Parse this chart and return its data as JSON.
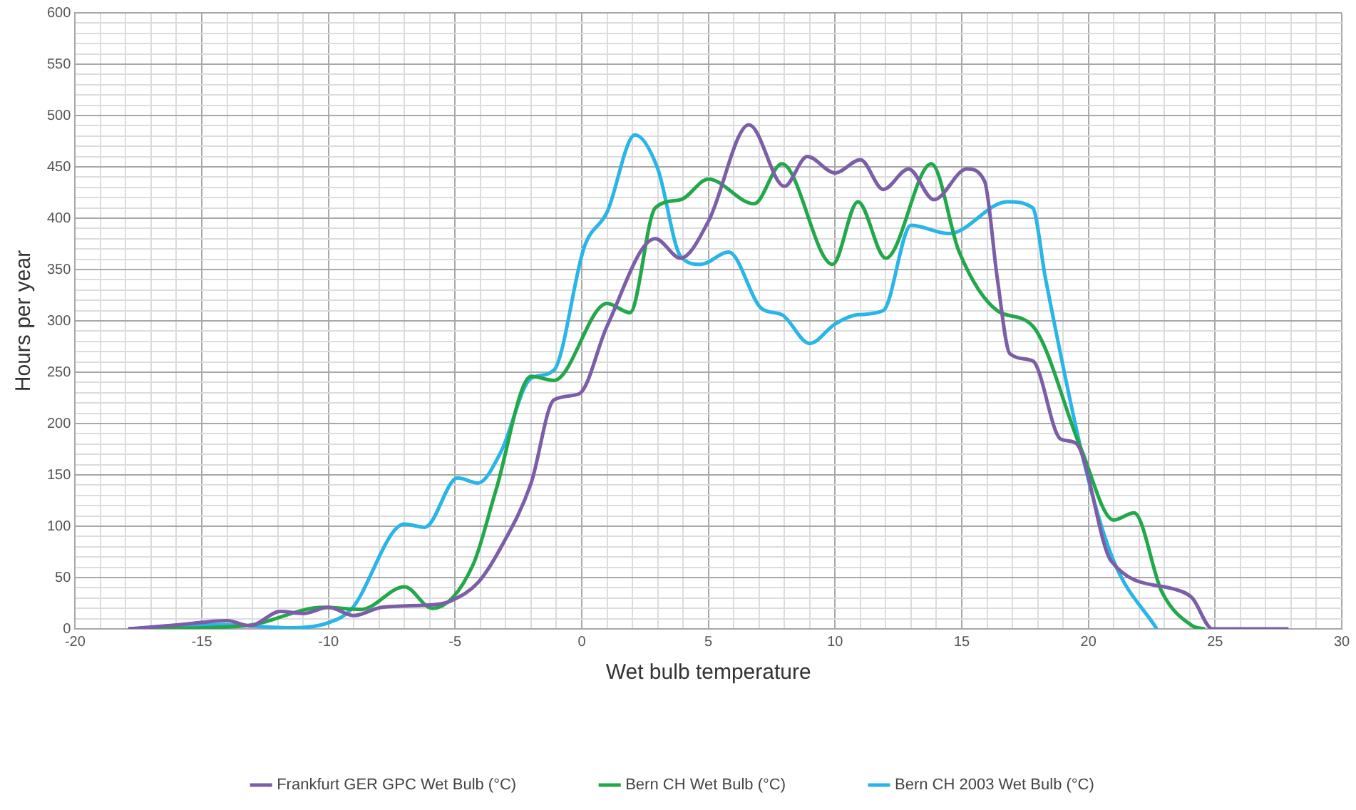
{
  "chart_data": {
    "type": "line",
    "xlabel": "Wet bulb temperature",
    "ylabel": "Hours per year",
    "xlim": [
      -20,
      30
    ],
    "ylim": [
      0,
      600
    ],
    "xticks": [
      -20,
      {
        "value": -19,
        "label": null
      },
      {
        "value": -18,
        "label": null
      },
      {
        "value": -17,
        "label": null
      },
      {
        "value": -16,
        "label": null
      },
      -15,
      {
        "value": -14,
        "label": null
      },
      {
        "value": -13,
        "label": null
      },
      {
        "value": -12,
        "label": null
      },
      {
        "value": -11,
        "label": null
      },
      -10,
      {
        "value": -9,
        "label": null
      },
      {
        "value": -8,
        "label": null
      },
      {
        "value": -7,
        "label": null
      },
      {
        "value": -6,
        "label": null
      },
      -5,
      {
        "value": -4,
        "label": null
      },
      {
        "value": -3,
        "label": null
      },
      {
        "value": -2,
        "label": null
      },
      {
        "value": -1,
        "label": null
      },
      0,
      {
        "value": 1,
        "label": null
      },
      {
        "value": 2,
        "label": null
      },
      {
        "value": 3,
        "label": null
      },
      {
        "value": 4,
        "label": null
      },
      5,
      {
        "value": 6,
        "label": null
      },
      {
        "value": 7,
        "label": null
      },
      {
        "value": 8,
        "label": null
      },
      {
        "value": 9,
        "label": null
      },
      10,
      {
        "value": 11,
        "label": null
      },
      {
        "value": 12,
        "label": null
      },
      {
        "value": 13,
        "label": null
      },
      {
        "value": 14,
        "label": null
      },
      15,
      {
        "value": 16,
        "label": null
      },
      {
        "value": 17,
        "label": null
      },
      {
        "value": 18,
        "label": null
      },
      {
        "value": 19,
        "label": null
      },
      20,
      {
        "value": 21,
        "label": null
      },
      {
        "value": 22,
        "label": null
      },
      {
        "value": 23,
        "label": null
      },
      {
        "value": 24,
        "label": null
      },
      25,
      {
        "value": 26,
        "label": null
      },
      {
        "value": 27,
        "label": null
      },
      {
        "value": 28,
        "label": null
      },
      {
        "value": 29,
        "label": null
      },
      30
    ],
    "yticks": [
      0,
      {
        "value": 10,
        "label": null
      },
      {
        "value": 20,
        "label": null
      },
      {
        "value": 30,
        "label": null
      },
      {
        "value": 40,
        "label": null
      },
      50,
      {
        "value": 60,
        "label": null
      },
      {
        "value": 70,
        "label": null
      },
      {
        "value": 80,
        "label": null
      },
      {
        "value": 90,
        "label": null
      },
      100,
      {
        "value": 110,
        "label": null
      },
      {
        "value": 120,
        "label": null
      },
      {
        "value": 130,
        "label": null
      },
      {
        "value": 140,
        "label": null
      },
      150,
      {
        "value": 160,
        "label": null
      },
      {
        "value": 170,
        "label": null
      },
      {
        "value": 180,
        "label": null
      },
      {
        "value": 190,
        "label": null
      },
      200,
      {
        "value": 210,
        "label": null
      },
      {
        "value": 220,
        "label": null
      },
      {
        "value": 230,
        "label": null
      },
      {
        "value": 240,
        "label": null
      },
      250,
      {
        "value": 260,
        "label": null
      },
      {
        "value": 270,
        "label": null
      },
      {
        "value": 280,
        "label": null
      },
      {
        "value": 290,
        "label": null
      },
      300,
      {
        "value": 310,
        "label": null
      },
      {
        "value": 320,
        "label": null
      },
      {
        "value": 330,
        "label": null
      },
      {
        "value": 340,
        "label": null
      },
      350,
      {
        "value": 360,
        "label": null
      },
      {
        "value": 370,
        "label": null
      },
      {
        "value": 380,
        "label": null
      },
      {
        "value": 390,
        "label": null
      },
      400,
      {
        "value": 410,
        "label": null
      },
      {
        "value": 420,
        "label": null
      },
      {
        "value": 430,
        "label": null
      },
      {
        "value": 440,
        "label": null
      },
      450,
      {
        "value": 460,
        "label": null
      },
      {
        "value": 470,
        "label": null
      },
      {
        "value": 480,
        "label": null
      },
      {
        "value": 490,
        "label": null
      },
      500,
      {
        "value": 510,
        "label": null
      },
      {
        "value": 520,
        "label": null
      },
      {
        "value": 530,
        "label": null
      },
      {
        "value": 540,
        "label": null
      },
      550,
      {
        "value": 560,
        "label": null
      },
      {
        "value": 570,
        "label": null
      },
      {
        "value": 580,
        "label": null
      },
      {
        "value": 590,
        "label": null
      },
      600
    ],
    "grid": true,
    "legend": "bottom",
    "marker": "none",
    "line_style": "solid",
    "series": [
      {
        "name": "Frankfurt GER GPC Wet Bulb (°C)",
        "color": "#7b5ea7",
        "x": [
          -17.9,
          -15.9,
          -14,
          -13.1,
          -11.9,
          -11,
          -10,
          -9,
          -7.9,
          -5.7,
          -5.1,
          -4.1,
          -3.2,
          -2,
          -1.1,
          -0.1,
          1,
          2.9,
          3.9,
          5,
          6.6,
          8,
          8.9,
          10,
          11,
          11.9,
          12.9,
          13.9,
          15.2,
          15.9,
          16.4,
          16.9,
          17.8,
          18.9,
          19.5,
          20.9,
          23.5,
          24.1,
          24.9,
          27.9
        ],
        "values": [
          0,
          4,
          8,
          3,
          17,
          15,
          21,
          13,
          21,
          24,
          28,
          45,
          79,
          142,
          223,
          229,
          295,
          380,
          361,
          397,
          491,
          431,
          460,
          444,
          457,
          428,
          448,
          418,
          448,
          436,
          342,
          268,
          261,
          185,
          181,
          66,
          38,
          30,
          0,
          0
        ]
      },
      {
        "name": "Bern CH Wet Bulb (°C)",
        "color": "#22a84a",
        "x": [
          -17.9,
          -13.3,
          -10.2,
          -8.7,
          -7,
          -5.9,
          -4.3,
          -3.4,
          -2,
          -1.1,
          1,
          1.9,
          2.9,
          3.9,
          5,
          6.8,
          7.9,
          9.9,
          10.9,
          12,
          13.8,
          14.9,
          16.4,
          17.8,
          19.7,
          21,
          21.8,
          22.9,
          24.1,
          24.6
        ],
        "values": [
          0,
          3,
          21,
          19,
          41,
          20,
          62,
          134,
          246,
          242,
          317,
          308,
          410,
          418,
          438,
          414,
          453,
          355,
          416,
          361,
          453,
          367,
          310,
          295,
          176,
          106,
          113,
          36,
          3,
          0
        ]
      },
      {
        "name": "Bern CH 2003 Wet Bulb (°C)",
        "color": "#29b5e8",
        "x": [
          -17.9,
          -14.2,
          -11.4,
          -10,
          -9.1,
          -7,
          -6.2,
          -4.9,
          -4.1,
          -3.2,
          -2,
          -1.1,
          0.1,
          1,
          2.1,
          3,
          3.9,
          4.7,
          5.8,
          7.1,
          7.9,
          9,
          10,
          10.9,
          11.9,
          13,
          14.5,
          16.8,
          17.8,
          18.3,
          19.9,
          21,
          22.7
        ],
        "values": [
          0,
          4,
          1,
          6,
          19,
          102,
          99,
          147,
          142,
          172,
          244,
          252,
          372,
          406,
          481,
          448,
          363,
          355,
          367,
          312,
          306,
          278,
          297,
          306,
          310,
          393,
          385,
          416,
          410,
          342,
          155,
          66,
          0
        ]
      }
    ]
  }
}
